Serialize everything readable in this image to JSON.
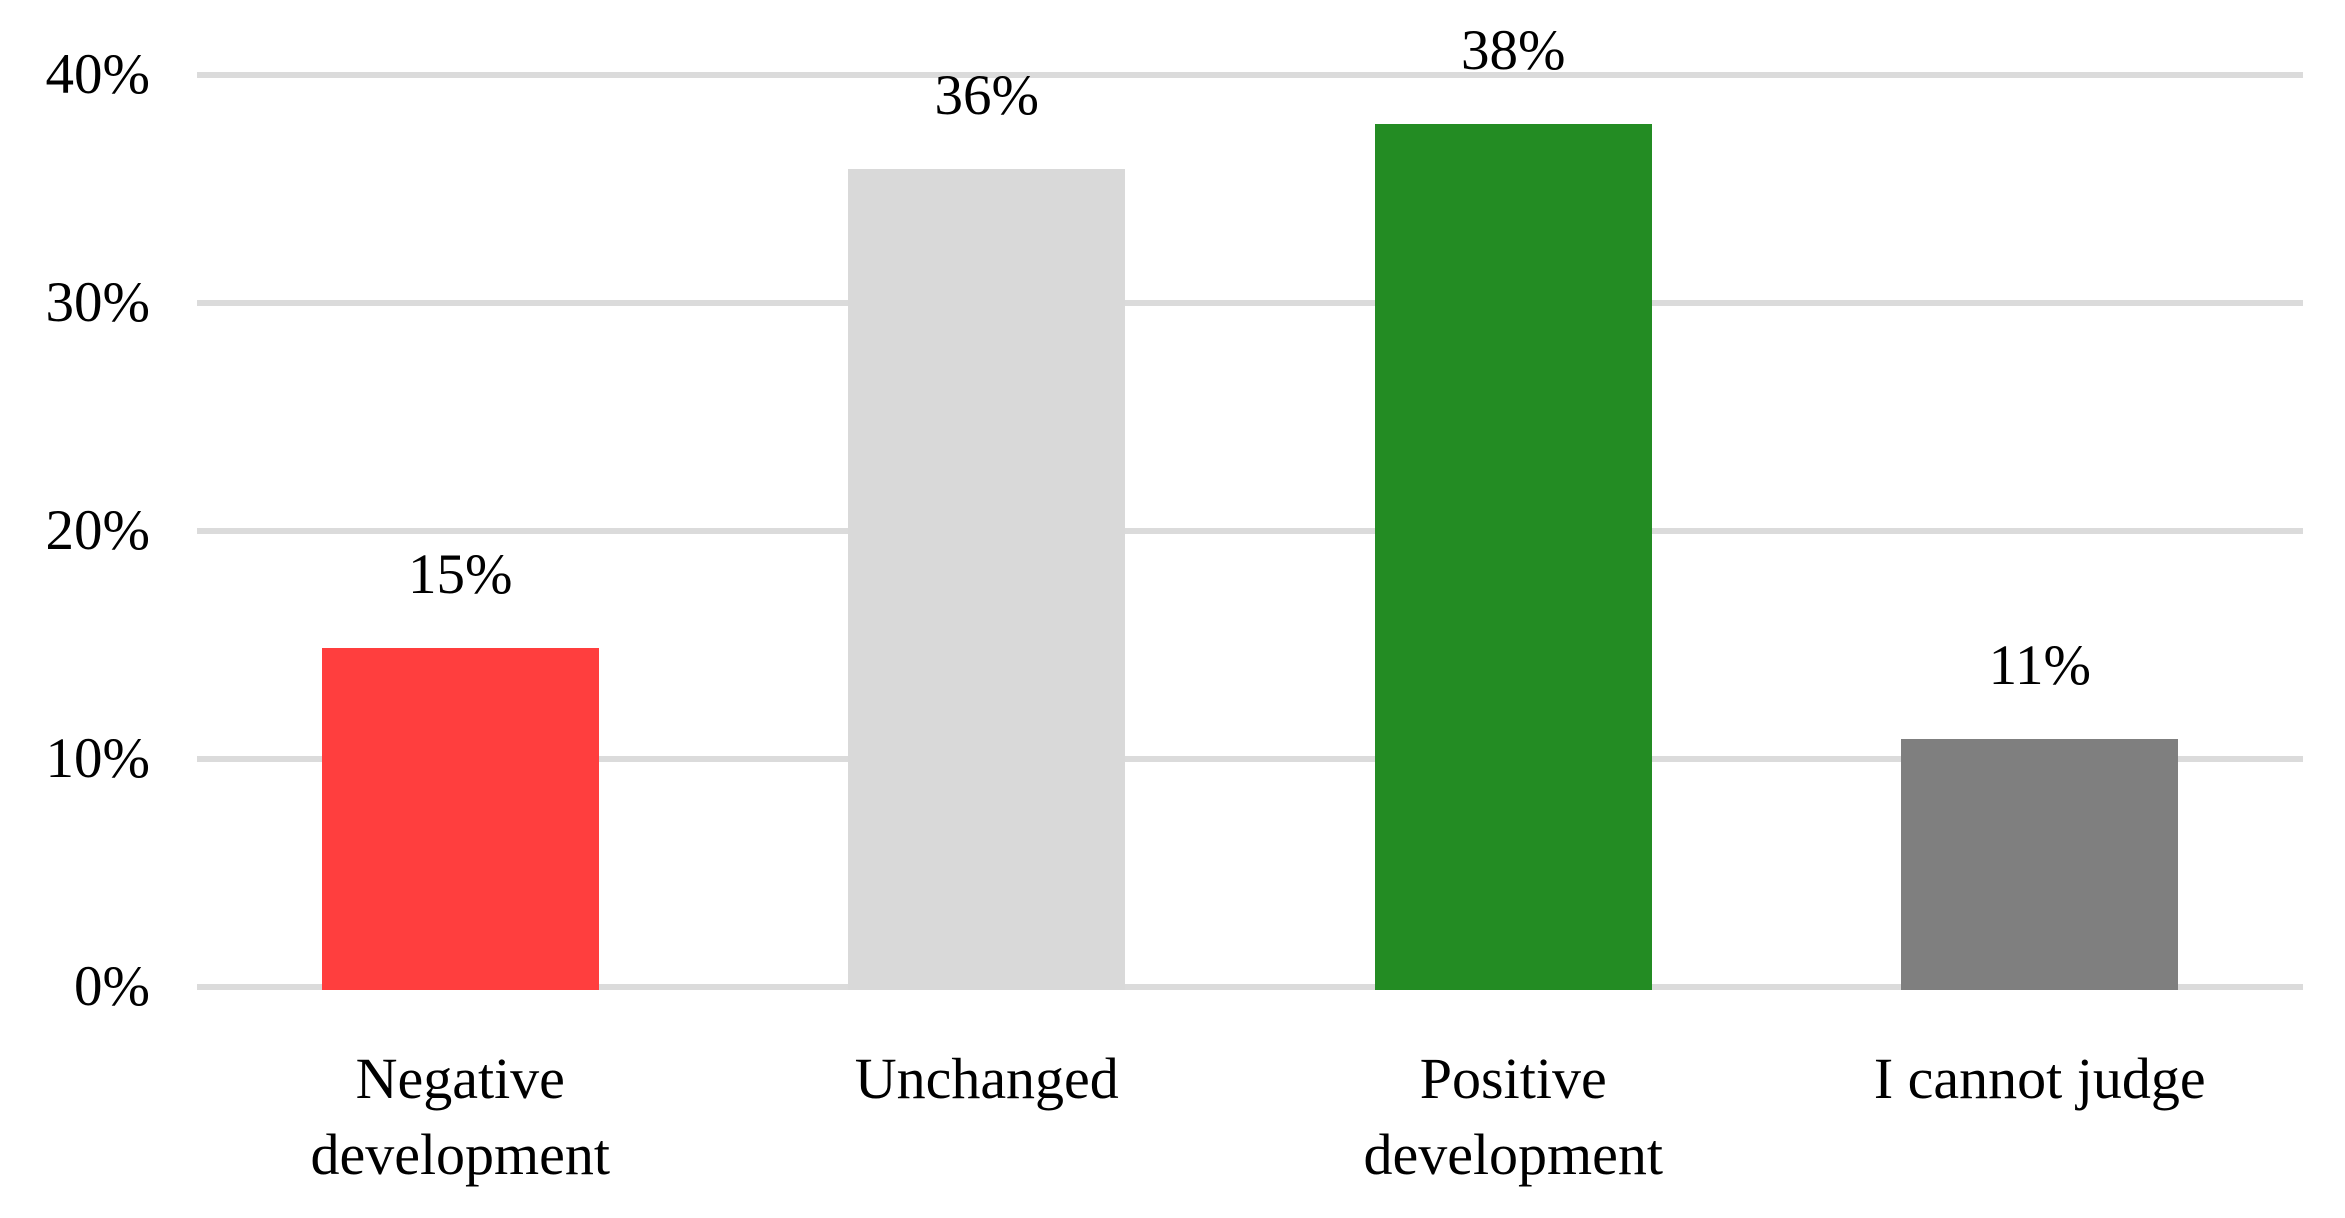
{
  "chart_data": {
    "type": "bar",
    "title": "",
    "xlabel": "",
    "ylabel": "",
    "categories": [
      "Negative development",
      "Unchanged",
      "Positive development",
      "I cannot judge"
    ],
    "category_label_lines": [
      [
        "Negative",
        "development"
      ],
      [
        "Unchanged"
      ],
      [
        "Positive",
        "development"
      ],
      [
        "I cannot judge"
      ]
    ],
    "values": [
      15,
      36,
      38,
      11
    ],
    "data_labels": [
      "15%",
      "36%",
      "38%",
      "11%"
    ],
    "bar_colors": [
      "#FF3E3E",
      "#D9D9D9",
      "#238C23",
      "#7F7F7F"
    ],
    "ylim": [
      0,
      40
    ],
    "ytick_values": [
      0,
      10,
      20,
      30,
      40
    ],
    "ytick_labels": [
      "0%",
      "10%",
      "20%",
      "30%",
      "40%"
    ],
    "grid": "horizontal",
    "gridline_color": "#DBDBDB",
    "text_color": "#000000",
    "background_color": "#FFFFFF",
    "legend_position": "none"
  }
}
